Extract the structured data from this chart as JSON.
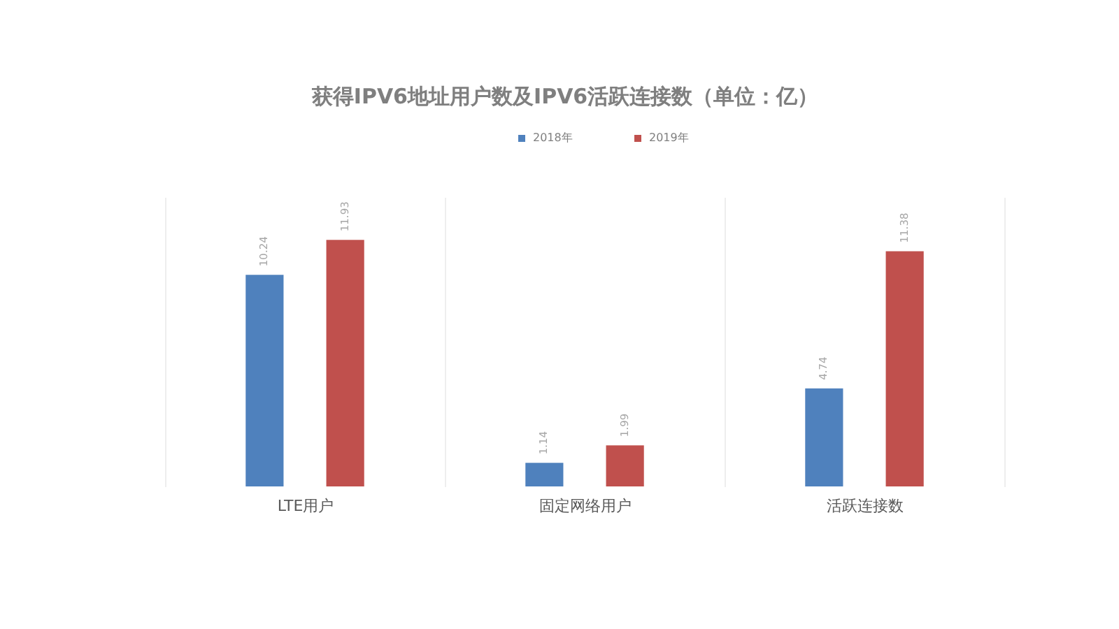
{
  "chart_data": {
    "type": "bar",
    "title": "获得IPV6地址用户数及IPV6活跃连接数（单位：亿）",
    "categories": [
      "LTE用户",
      "固定网络用户",
      "活跃连接数"
    ],
    "series": [
      {
        "name": "2018年",
        "color": "#4f81bd",
        "values": [
          10.24,
          1.14,
          4.74
        ]
      },
      {
        "name": "2019年",
        "color": "#c0504d",
        "values": [
          11.93,
          1.99,
          11.38
        ]
      }
    ],
    "ylim": [
      0,
      14
    ],
    "data_labels": true,
    "legend": "top",
    "grid": "x",
    "tick_labels": "x"
  }
}
